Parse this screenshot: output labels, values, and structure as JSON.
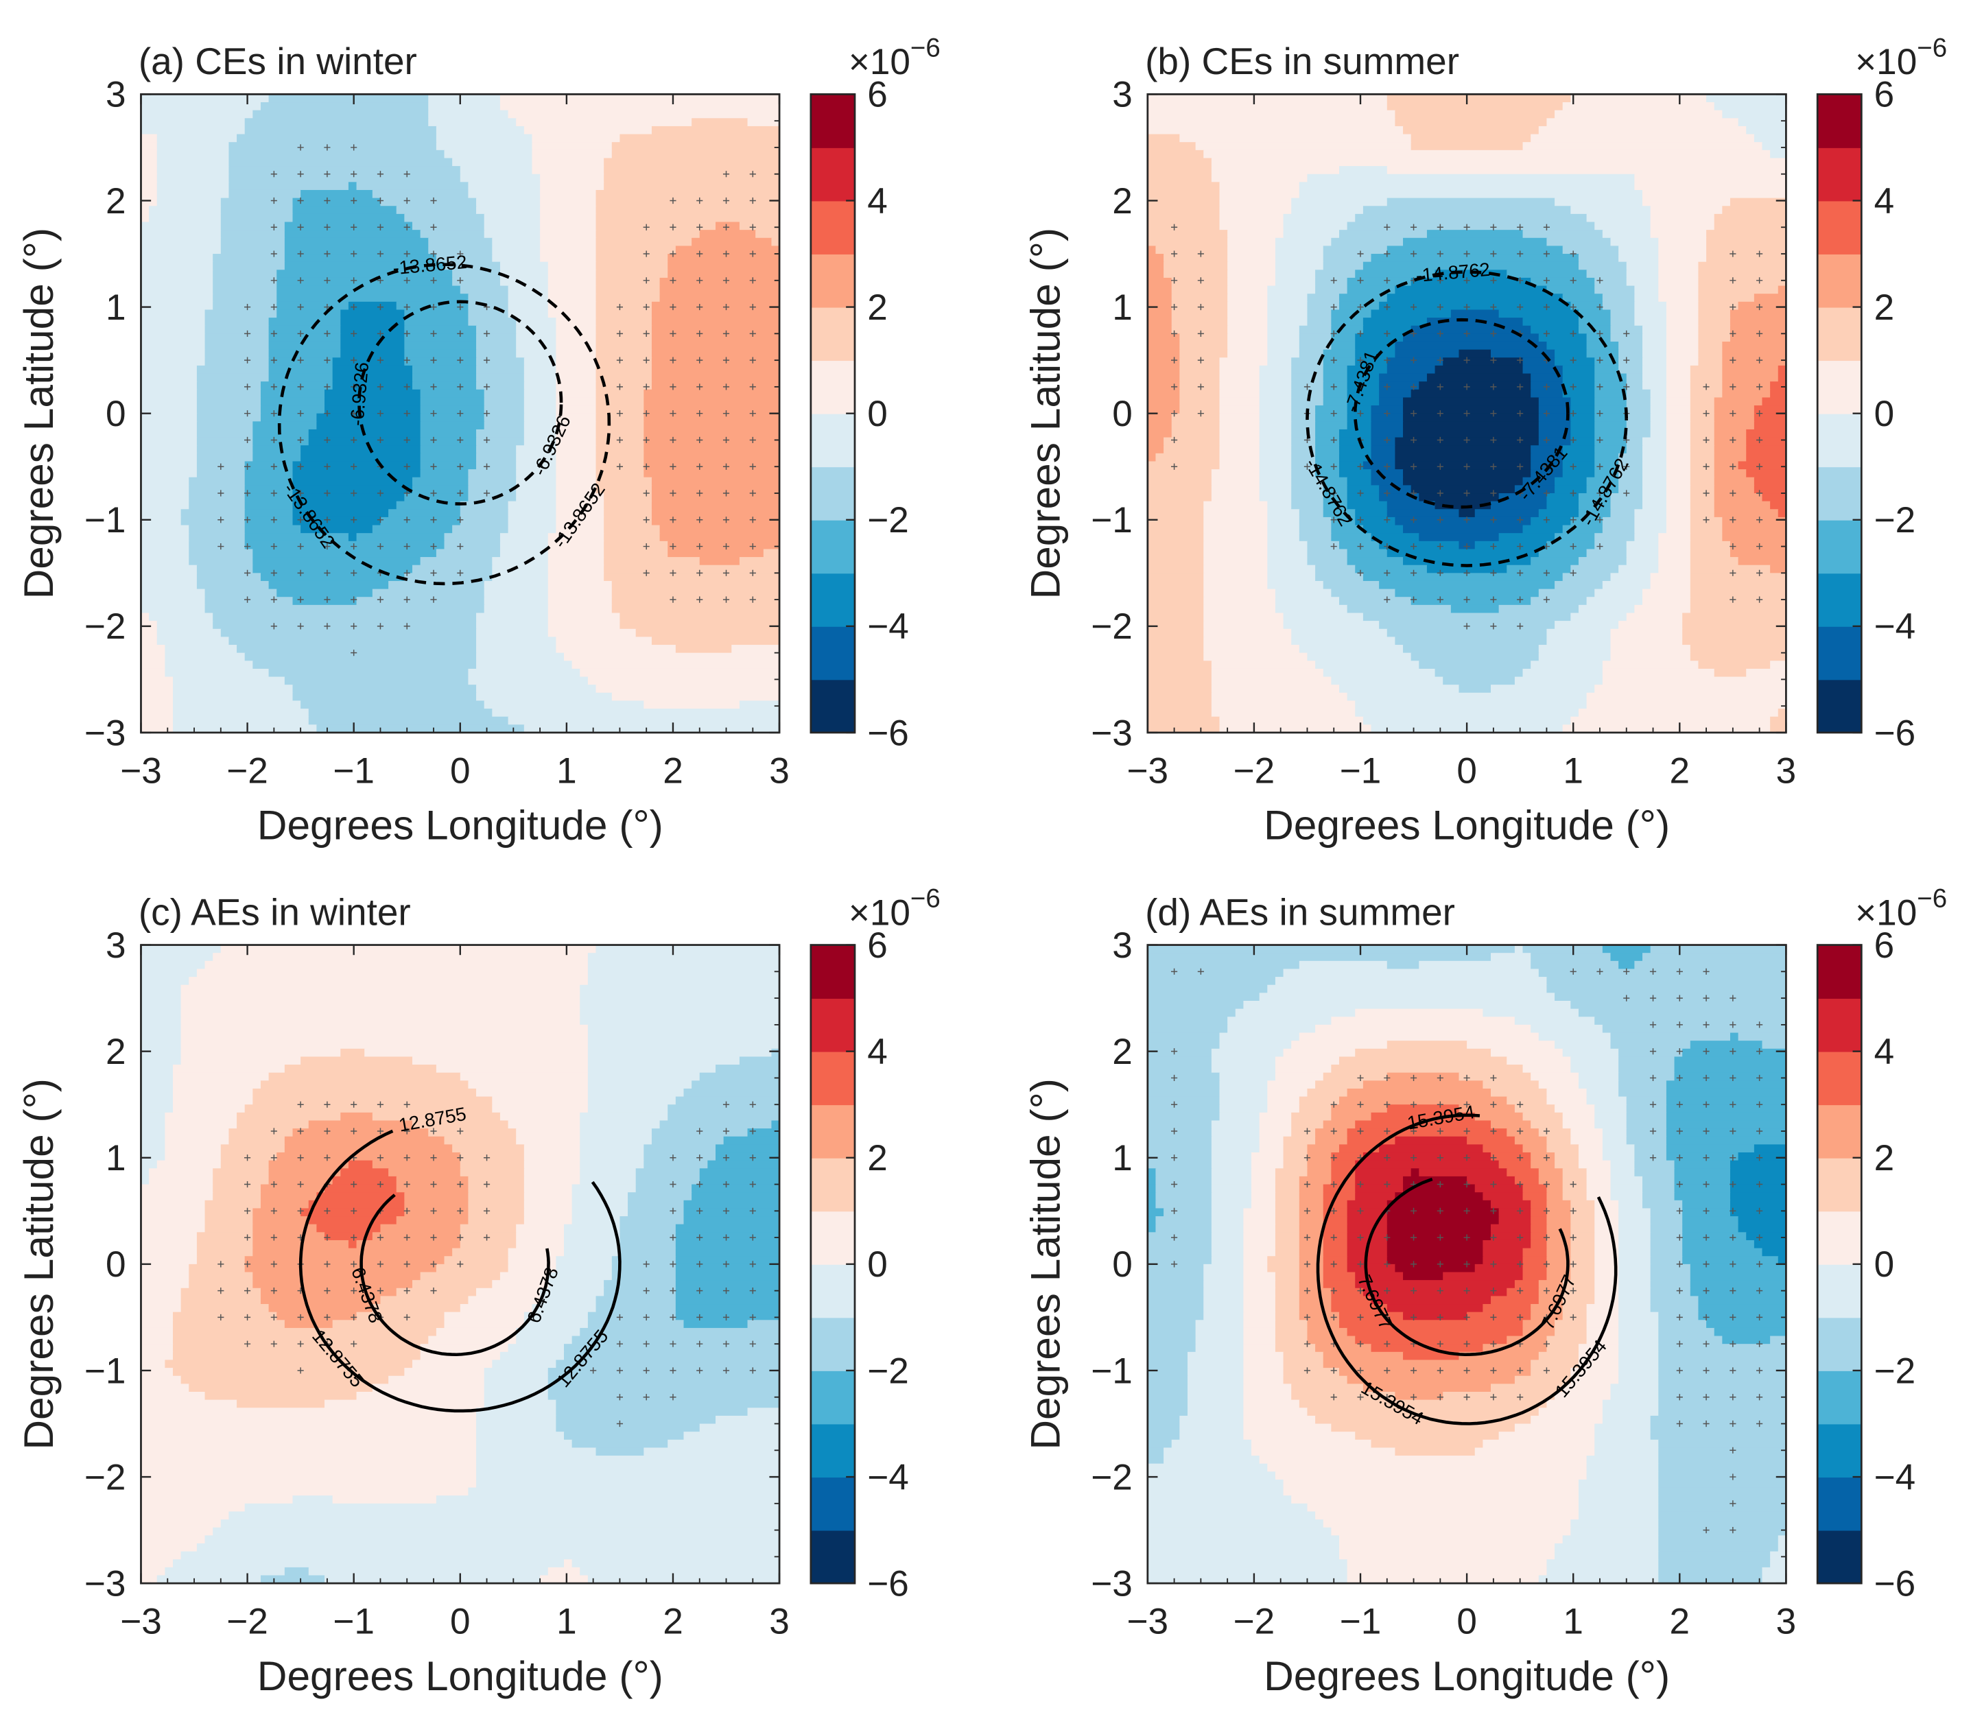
{
  "chart_data": [
    {
      "type": "heatmap",
      "title": "(a) CEs in winter",
      "xlabel": "Degrees Longitude (°)",
      "ylabel": "Degrees Latitude (°)",
      "xlim": [
        -3,
        3
      ],
      "ylim": [
        -3,
        3
      ],
      "xticks": [
        "−3",
        "−2",
        "−1",
        "0",
        "1",
        "2",
        "3"
      ],
      "yticks": [
        "3",
        "2",
        "1",
        "0",
        "−1",
        "−2",
        "−3"
      ],
      "colorbar": {
        "ticks": [
          "6",
          "4",
          "2",
          "0",
          "−2",
          "−4",
          "−6"
        ],
        "exponent_base": "×10",
        "exponent": "−6",
        "range": [
          -6,
          6
        ]
      },
      "grid_lon": [
        -3,
        -2.5,
        -2,
        -1.5,
        -1,
        -0.5,
        0,
        0.5,
        1,
        1.5,
        2,
        2.5,
        3
      ],
      "grid_lat": [
        3,
        2.5,
        2,
        1.5,
        1,
        0.5,
        0,
        -0.5,
        -1,
        -1.5,
        -2,
        -2.5,
        -3
      ],
      "values_e-6": [
        [
          -0.5,
          -0.5,
          -0.8,
          -1.2,
          -1.3,
          -1.2,
          -0.6,
          0.3,
          0.5,
          0.6,
          0.7,
          0.8,
          0.6
        ],
        [
          0.3,
          -0.5,
          -1.2,
          -1.5,
          -1.5,
          -1.3,
          -0.8,
          -0.3,
          0.5,
          1.1,
          1.2,
          1.3,
          1.2
        ],
        [
          0.2,
          -0.6,
          -1.3,
          -2.1,
          -2.2,
          -1.8,
          -1.2,
          -0.5,
          0.6,
          1.3,
          1.6,
          1.8,
          1.8
        ],
        [
          -0.2,
          -0.7,
          -1.4,
          -2.3,
          -2.6,
          -2.4,
          -1.6,
          -0.6,
          0.5,
          1.4,
          2.0,
          2.3,
          2.0
        ],
        [
          -0.5,
          -0.8,
          -1.5,
          -2.5,
          -3.1,
          -3.0,
          -2.2,
          -0.9,
          0.4,
          1.5,
          2.3,
          2.6,
          2.2
        ],
        [
          -0.5,
          -0.9,
          -1.6,
          -2.6,
          -3.2,
          -3.0,
          -2.4,
          -1.2,
          0.3,
          1.5,
          2.4,
          2.7,
          2.4
        ],
        [
          -0.5,
          -1.0,
          -1.8,
          -2.8,
          -3.3,
          -3.2,
          -2.5,
          -1.3,
          0.2,
          1.5,
          2.5,
          2.8,
          2.6
        ],
        [
          -0.5,
          -1.0,
          -2.0,
          -3.1,
          -3.5,
          -3.3,
          -2.3,
          -1.1,
          0.2,
          1.5,
          2.5,
          2.8,
          2.6
        ],
        [
          -0.6,
          -1.1,
          -2.1,
          -3.2,
          -3.3,
          -2.8,
          -2.0,
          -0.9,
          0.3,
          1.4,
          2.4,
          2.6,
          2.3
        ],
        [
          -0.6,
          -1.0,
          -1.9,
          -2.4,
          -2.4,
          -2.0,
          -1.5,
          -0.6,
          0.4,
          1.2,
          1.8,
          1.9,
          1.7
        ],
        [
          0.3,
          -0.7,
          -1.4,
          -1.8,
          -1.7,
          -1.5,
          -1.2,
          -0.5,
          0.3,
          1.0,
          1.3,
          1.4,
          1.3
        ],
        [
          0.5,
          -0.4,
          -0.8,
          -1.1,
          -1.3,
          -1.3,
          -1.1,
          -0.6,
          -0.2,
          0.4,
          0.6,
          0.5,
          0.3
        ],
        [
          0.4,
          -0.3,
          -0.6,
          -0.9,
          -1.2,
          -1.3,
          -1.2,
          -1.1,
          -0.8,
          -0.6,
          -0.5,
          -0.5,
          -0.5
        ]
      ],
      "contours": [
        {
          "level": "-13.8652",
          "style": "dashed",
          "center": [
            -0.15,
            -0.1
          ],
          "radius": [
            1.55,
            1.5
          ]
        },
        {
          "level": "-6.9326",
          "style": "dashed",
          "center": [
            0.0,
            0.1
          ],
          "radius": [
            0.95,
            0.95
          ]
        }
      ]
    },
    {
      "type": "heatmap",
      "title": "(b) CEs in summer",
      "xlabel": "Degrees Longitude (°)",
      "ylabel": "Degrees Latitude (°)",
      "xlim": [
        -3,
        3
      ],
      "ylim": [
        -3,
        3
      ],
      "xticks": [
        "−3",
        "−2",
        "−1",
        "0",
        "1",
        "2",
        "3"
      ],
      "yticks": [
        "3",
        "2",
        "1",
        "0",
        "−1",
        "−2",
        "−3"
      ],
      "colorbar": {
        "ticks": [
          "6",
          "4",
          "2",
          "0",
          "−2",
          "−4",
          "−6"
        ],
        "exponent_base": "×10",
        "exponent": "−6",
        "range": [
          -6,
          6
        ]
      },
      "grid_lon": [
        -3,
        -2.5,
        -2,
        -1.5,
        -1,
        -0.5,
        0,
        0.5,
        1,
        1.5,
        2,
        2.5,
        3
      ],
      "grid_lat": [
        3,
        2.5,
        2,
        1.5,
        1,
        0.5,
        0,
        -0.5,
        -1,
        -1.5,
        -2,
        -2.5,
        -3
      ],
      "values_e-6": [
        [
          0.5,
          0.6,
          0.4,
          0.3,
          0.8,
          1.3,
          1.5,
          1.4,
          1.0,
          0.5,
          0.3,
          -0.3,
          -0.5
        ],
        [
          1.2,
          1.0,
          0.5,
          0.3,
          0.5,
          1.0,
          1.1,
          1.0,
          0.6,
          0.3,
          0.4,
          0.3,
          -0.3
        ],
        [
          1.5,
          1.3,
          0.5,
          -0.2,
          -0.8,
          -1.2,
          -1.3,
          -1.2,
          -0.8,
          -0.3,
          0.6,
          1.0,
          1.0
        ],
        [
          2.2,
          1.5,
          0.4,
          -0.6,
          -1.8,
          -2.4,
          -2.7,
          -2.5,
          -2.0,
          -0.8,
          0.6,
          1.5,
          1.5
        ],
        [
          2.4,
          1.6,
          0.4,
          -1.0,
          -2.8,
          -3.6,
          -4.0,
          -3.7,
          -3.0,
          -1.3,
          0.6,
          2.0,
          2.3
        ],
        [
          2.6,
          1.5,
          0.3,
          -1.4,
          -3.3,
          -4.6,
          -5.3,
          -5.0,
          -3.6,
          -1.8,
          0.5,
          2.3,
          3.0
        ],
        [
          2.6,
          1.5,
          0.3,
          -1.6,
          -3.6,
          -5.4,
          -6.3,
          -5.6,
          -3.9,
          -2.0,
          0.5,
          2.7,
          3.4
        ],
        [
          2.0,
          1.3,
          0.3,
          -1.6,
          -3.8,
          -5.6,
          -6.2,
          -5.4,
          -3.7,
          -1.8,
          0.6,
          2.9,
          3.6
        ],
        [
          1.6,
          1.0,
          0.3,
          -1.3,
          -3.2,
          -4.5,
          -4.9,
          -4.3,
          -3.0,
          -1.4,
          0.6,
          2.5,
          3.0
        ],
        [
          1.4,
          1.0,
          0.3,
          -0.8,
          -2.0,
          -2.8,
          -3.1,
          -2.8,
          -1.9,
          -0.8,
          0.7,
          1.8,
          2.0
        ],
        [
          1.3,
          1.0,
          0.4,
          -0.3,
          -0.8,
          -1.3,
          -1.6,
          -1.5,
          -0.7,
          0.2,
          1.0,
          1.4,
          1.4
        ],
        [
          1.3,
          1.1,
          0.6,
          0.2,
          -0.2,
          -0.8,
          -1.2,
          -1.0,
          -0.3,
          0.3,
          0.9,
          1.0,
          0.8
        ],
        [
          1.3,
          1.1,
          0.8,
          0.4,
          0.1,
          -0.4,
          -0.5,
          -0.4,
          0.1,
          0.5,
          0.8,
          0.6,
          1.2
        ]
      ],
      "contours": [
        {
          "level": "-14.8762",
          "style": "dashed",
          "center": [
            0.0,
            -0.05
          ],
          "radius": [
            1.5,
            1.38
          ]
        },
        {
          "level": "-7.4381",
          "style": "dashed",
          "center": [
            -0.05,
            0.0
          ],
          "radius": [
            1.0,
            0.88
          ]
        }
      ]
    },
    {
      "type": "heatmap",
      "title": "(c) AEs in winter",
      "xlabel": "Degrees Longitude (°)",
      "ylabel": "Degrees Latitude (°)",
      "xlim": [
        -3,
        3
      ],
      "ylim": [
        -3,
        3
      ],
      "xticks": [
        "−3",
        "−2",
        "−1",
        "0",
        "1",
        "2",
        "3"
      ],
      "yticks": [
        "3",
        "2",
        "1",
        "0",
        "−1",
        "−2",
        "−3"
      ],
      "colorbar": {
        "ticks": [
          "6",
          "4",
          "2",
          "0",
          "−2",
          "−4",
          "−6"
        ],
        "exponent_base": "×10",
        "exponent": "−6",
        "range": [
          -6,
          6
        ]
      },
      "grid_lon": [
        -3,
        -2.5,
        -2,
        -1.5,
        -1,
        -0.5,
        0,
        0.5,
        1,
        1.5,
        2,
        2.5,
        3
      ],
      "grid_lat": [
        3,
        2.5,
        2,
        1.5,
        1,
        0.5,
        0,
        -0.5,
        -1,
        -1.5,
        -2,
        -2.5,
        -3
      ],
      "values_e-6": [
        [
          -0.3,
          -0.3,
          0.3,
          0.5,
          0.5,
          0.5,
          0.4,
          0.3,
          0.2,
          -0.2,
          -0.4,
          -0.4,
          -0.4
        ],
        [
          -0.5,
          0.2,
          0.4,
          0.6,
          0.7,
          0.6,
          0.5,
          0.3,
          0.1,
          -0.3,
          -0.5,
          -0.5,
          -0.5
        ],
        [
          -0.5,
          0.2,
          0.6,
          0.9,
          1.0,
          0.9,
          0.7,
          0.4,
          0.2,
          -0.3,
          -0.6,
          -0.8,
          -1.0
        ],
        [
          -0.4,
          0.3,
          1.0,
          1.6,
          1.8,
          1.6,
          1.3,
          0.8,
          0.2,
          -0.4,
          -1.0,
          -1.6,
          -1.8
        ],
        [
          -0.3,
          0.5,
          1.5,
          2.5,
          3.0,
          2.9,
          2.0,
          1.2,
          0.2,
          -0.6,
          -1.5,
          -2.2,
          -2.4
        ],
        [
          0.2,
          0.8,
          1.8,
          3.0,
          3.4,
          3.0,
          2.2,
          1.2,
          0.1,
          -0.9,
          -1.9,
          -2.6,
          -2.6
        ],
        [
          0.4,
          1.0,
          2.0,
          2.8,
          2.8,
          2.4,
          1.8,
          0.9,
          -0.2,
          -1.1,
          -2.0,
          -2.4,
          -2.3
        ],
        [
          0.7,
          1.2,
          1.8,
          2.2,
          2.0,
          1.5,
          0.8,
          0.2,
          -0.6,
          -1.5,
          -2.0,
          -2.1,
          -2.0
        ],
        [
          0.8,
          1.2,
          1.4,
          1.5,
          1.3,
          1.0,
          0.3,
          -0.3,
          -1.3,
          -1.8,
          -1.9,
          -1.7,
          -1.5
        ],
        [
          0.5,
          0.7,
          0.8,
          0.8,
          0.7,
          0.5,
          0.2,
          -0.4,
          -1.2,
          -1.5,
          -1.2,
          -0.9,
          -0.7
        ],
        [
          0.3,
          0.4,
          0.4,
          0.4,
          0.4,
          0.3,
          0.1,
          -0.2,
          -0.6,
          -0.7,
          -0.6,
          -0.5,
          -0.4
        ],
        [
          0.3,
          0.2,
          -0.3,
          -0.6,
          -0.5,
          -0.3,
          -0.2,
          -0.1,
          -0.3,
          -0.4,
          -0.4,
          -0.4,
          -0.4
        ],
        [
          0.2,
          -0.4,
          -1.0,
          -1.2,
          -0.8,
          -0.4,
          -0.3,
          -0.2,
          0.2,
          -0.3,
          -0.5,
          -0.5,
          -0.5
        ]
      ],
      "contours": [
        {
          "level": "12.8755",
          "style": "solid",
          "center": [
            0.0,
            0.0
          ],
          "radius": [
            1.5,
            1.38
          ]
        },
        {
          "level": "6.4378",
          "style": "solid",
          "center": [
            -0.05,
            0.0
          ],
          "radius": [
            0.88,
            0.85
          ]
        }
      ]
    },
    {
      "type": "heatmap",
      "title": "(d) AEs in summer",
      "xlabel": "Degrees Longitude (°)",
      "ylabel": "Degrees Latitude (°)",
      "xlim": [
        -3,
        3
      ],
      "ylim": [
        -3,
        3
      ],
      "xticks": [
        "−3",
        "−2",
        "−1",
        "0",
        "1",
        "2",
        "3"
      ],
      "yticks": [
        "3",
        "2",
        "1",
        "0",
        "−1",
        "−2",
        "−3"
      ],
      "colorbar": {
        "ticks": [
          "6",
          "4",
          "2",
          "0",
          "−2",
          "−4",
          "−6"
        ],
        "exponent_base": "×10",
        "exponent": "−6",
        "range": [
          -6,
          6
        ]
      },
      "grid_lon": [
        -3,
        -2.5,
        -2,
        -1.5,
        -1,
        -0.5,
        0,
        0.5,
        1,
        1.5,
        2,
        2.5,
        3
      ],
      "grid_lat": [
        3,
        2.5,
        2,
        1.5,
        1,
        0.5,
        0,
        -0.5,
        -1,
        -1.5,
        -2,
        -2.5,
        -3
      ],
      "values_e-6": [
        [
          -1.5,
          -1.6,
          -1.5,
          -1.2,
          -1.4,
          -1.5,
          -1.3,
          -1.0,
          -1.8,
          -2.3,
          -1.6,
          -1.2,
          -1.0
        ],
        [
          -1.5,
          -1.4,
          -1.0,
          -0.5,
          -0.3,
          -0.2,
          -0.3,
          -0.5,
          -1.2,
          -1.6,
          -1.8,
          -1.5,
          -1.3
        ],
        [
          -1.8,
          -1.2,
          -0.4,
          0.3,
          1.0,
          1.4,
          1.2,
          0.6,
          -0.2,
          -1.2,
          -2.0,
          -2.2,
          -2.0
        ],
        [
          -2.0,
          -1.3,
          -0.3,
          1.2,
          2.6,
          3.1,
          2.8,
          1.8,
          0.5,
          -1.1,
          -2.3,
          -2.6,
          -2.6
        ],
        [
          -2.0,
          -1.3,
          0.0,
          2.0,
          4.0,
          4.8,
          4.6,
          3.5,
          1.2,
          -0.8,
          -2.3,
          -3.0,
          -3.2
        ],
        [
          -2.2,
          -1.4,
          0.2,
          2.4,
          4.5,
          5.6,
          5.6,
          4.6,
          1.8,
          -0.4,
          -2.0,
          -3.0,
          -3.5
        ],
        [
          -1.8,
          -1.2,
          0.3,
          2.5,
          4.5,
          5.4,
          5.2,
          4.2,
          1.8,
          -0.3,
          -1.9,
          -2.8,
          -3.0
        ],
        [
          -1.6,
          -1.0,
          0.3,
          2.2,
          3.6,
          4.1,
          4.0,
          3.3,
          1.5,
          -0.2,
          -1.7,
          -2.4,
          -2.2
        ],
        [
          -1.5,
          -0.8,
          0.3,
          1.6,
          2.4,
          2.7,
          2.6,
          2.2,
          1.0,
          -0.2,
          -1.5,
          -1.7,
          -1.6
        ],
        [
          -1.6,
          -0.7,
          0.2,
          0.9,
          1.2,
          1.4,
          1.2,
          1.0,
          0.4,
          -0.5,
          -1.5,
          -1.6,
          -1.4
        ],
        [
          -0.9,
          -0.5,
          -0.2,
          0.3,
          0.5,
          0.8,
          0.9,
          0.6,
          0.1,
          -0.5,
          -1.3,
          -1.5,
          -1.3
        ],
        [
          -0.6,
          -0.5,
          -0.4,
          -0.2,
          0.2,
          0.6,
          0.5,
          0.2,
          0.0,
          -0.5,
          -1.4,
          -1.6,
          -1.0
        ],
        [
          -0.5,
          -0.5,
          -0.5,
          -0.4,
          0.1,
          0.5,
          0.3,
          0.1,
          -0.2,
          -0.6,
          -1.2,
          -1.3,
          -0.7
        ]
      ],
      "contours": [
        {
          "level": "15.3954",
          "style": "solid",
          "center": [
            0.0,
            -0.05
          ],
          "radius": [
            1.4,
            1.45
          ]
        },
        {
          "level": "7.6977",
          "style": "solid",
          "center": [
            0.0,
            0.0
          ],
          "radius": [
            0.95,
            0.85
          ]
        }
      ]
    }
  ],
  "colormap": [
    "#053061",
    "#0563a8",
    "#0c8bc0",
    "#4db3d6",
    "#a6d5e8",
    "#dcecf3",
    "#fcede8",
    "#fdd0b8",
    "#fca482",
    "#f4654e",
    "#d62532",
    "#9a0020"
  ],
  "significance_marker": "+"
}
